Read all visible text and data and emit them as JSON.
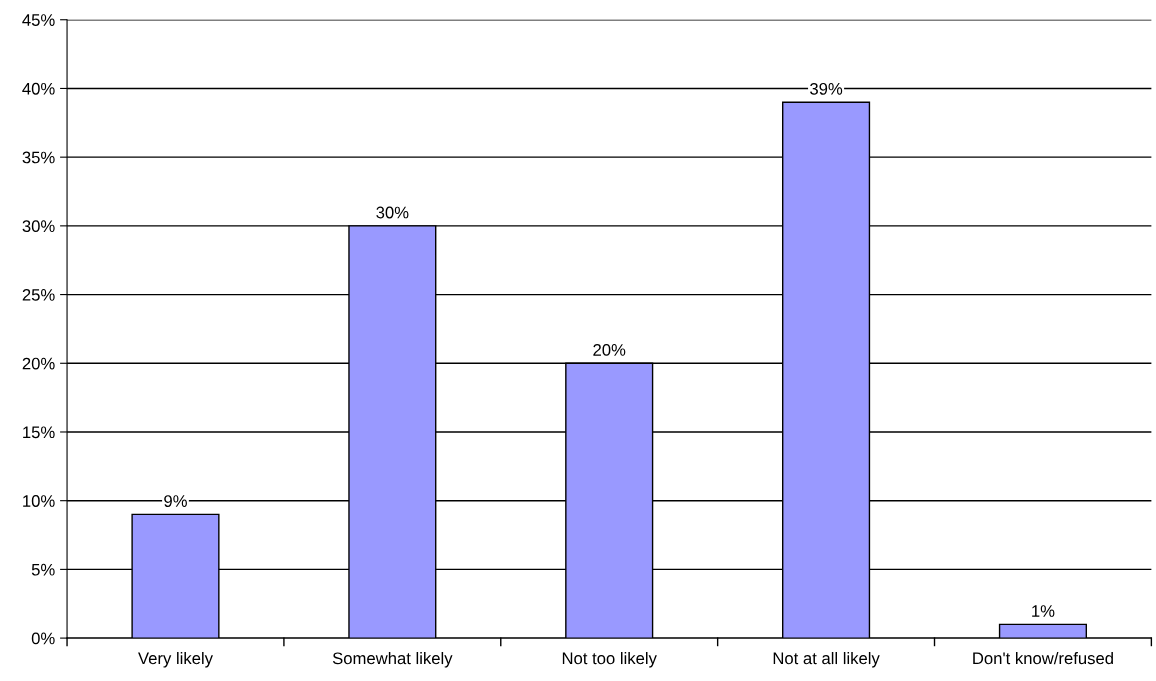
{
  "chart_data": {
    "type": "bar",
    "categories": [
      "Very likely",
      "Somewhat likely",
      "Not too likely",
      "Not at all likely",
      "Don't know/refused"
    ],
    "values": [
      9,
      30,
      20,
      39,
      1
    ],
    "value_labels": [
      "9%",
      "30%",
      "20%",
      "39%",
      "1%"
    ],
    "color": "#9999ff",
    "ylim": [
      0,
      45
    ],
    "yticks": [
      {
        "value": 0,
        "label": "0%"
      },
      {
        "value": 5,
        "label": "5%"
      },
      {
        "value": 10,
        "label": "10%"
      },
      {
        "value": 15,
        "label": "15%"
      },
      {
        "value": 20,
        "label": "20%"
      },
      {
        "value": 25,
        "label": "25%"
      },
      {
        "value": 30,
        "label": "30%"
      },
      {
        "value": 35,
        "label": "35%"
      },
      {
        "value": 40,
        "label": "40%"
      },
      {
        "value": 45,
        "label": "45%"
      }
    ],
    "grid": "y"
  }
}
